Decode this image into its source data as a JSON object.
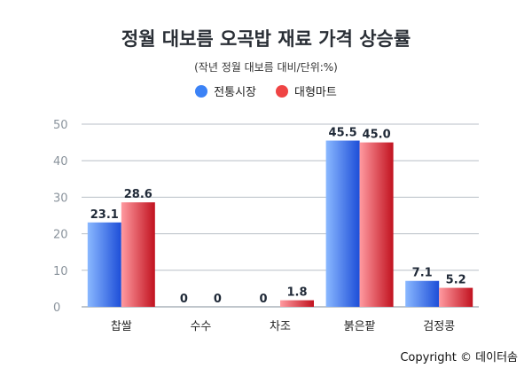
{
  "chart_data": {
    "type": "bar",
    "title": "정월 대보름 오곡밥 재료 가격 상승률",
    "subtitle": "(작년 정월 대보름 대비/단위:%)",
    "categories": [
      "찹쌀",
      "수수",
      "차조",
      "붉은팥",
      "검정콩"
    ],
    "series": [
      {
        "name": "전통시장",
        "values": [
          23.1,
          0,
          0,
          45.5,
          7.1
        ],
        "labels": [
          "23.1",
          "0",
          "0",
          "45.5",
          "7.1"
        ],
        "color": "#3b82f6"
      },
      {
        "name": "대형마트",
        "values": [
          28.6,
          0,
          1.8,
          45.0,
          5.2
        ],
        "labels": [
          "28.6",
          "0",
          "1.8",
          "45.0",
          "5.2"
        ],
        "color": "#ef4444"
      }
    ],
    "ylim": [
      0,
      50
    ],
    "yticks": [
      "0",
      "10",
      "20",
      "30",
      "40",
      "50"
    ],
    "grid": true,
    "legend_position": "top-center"
  },
  "copyright": "Copyright © 데이터솜"
}
